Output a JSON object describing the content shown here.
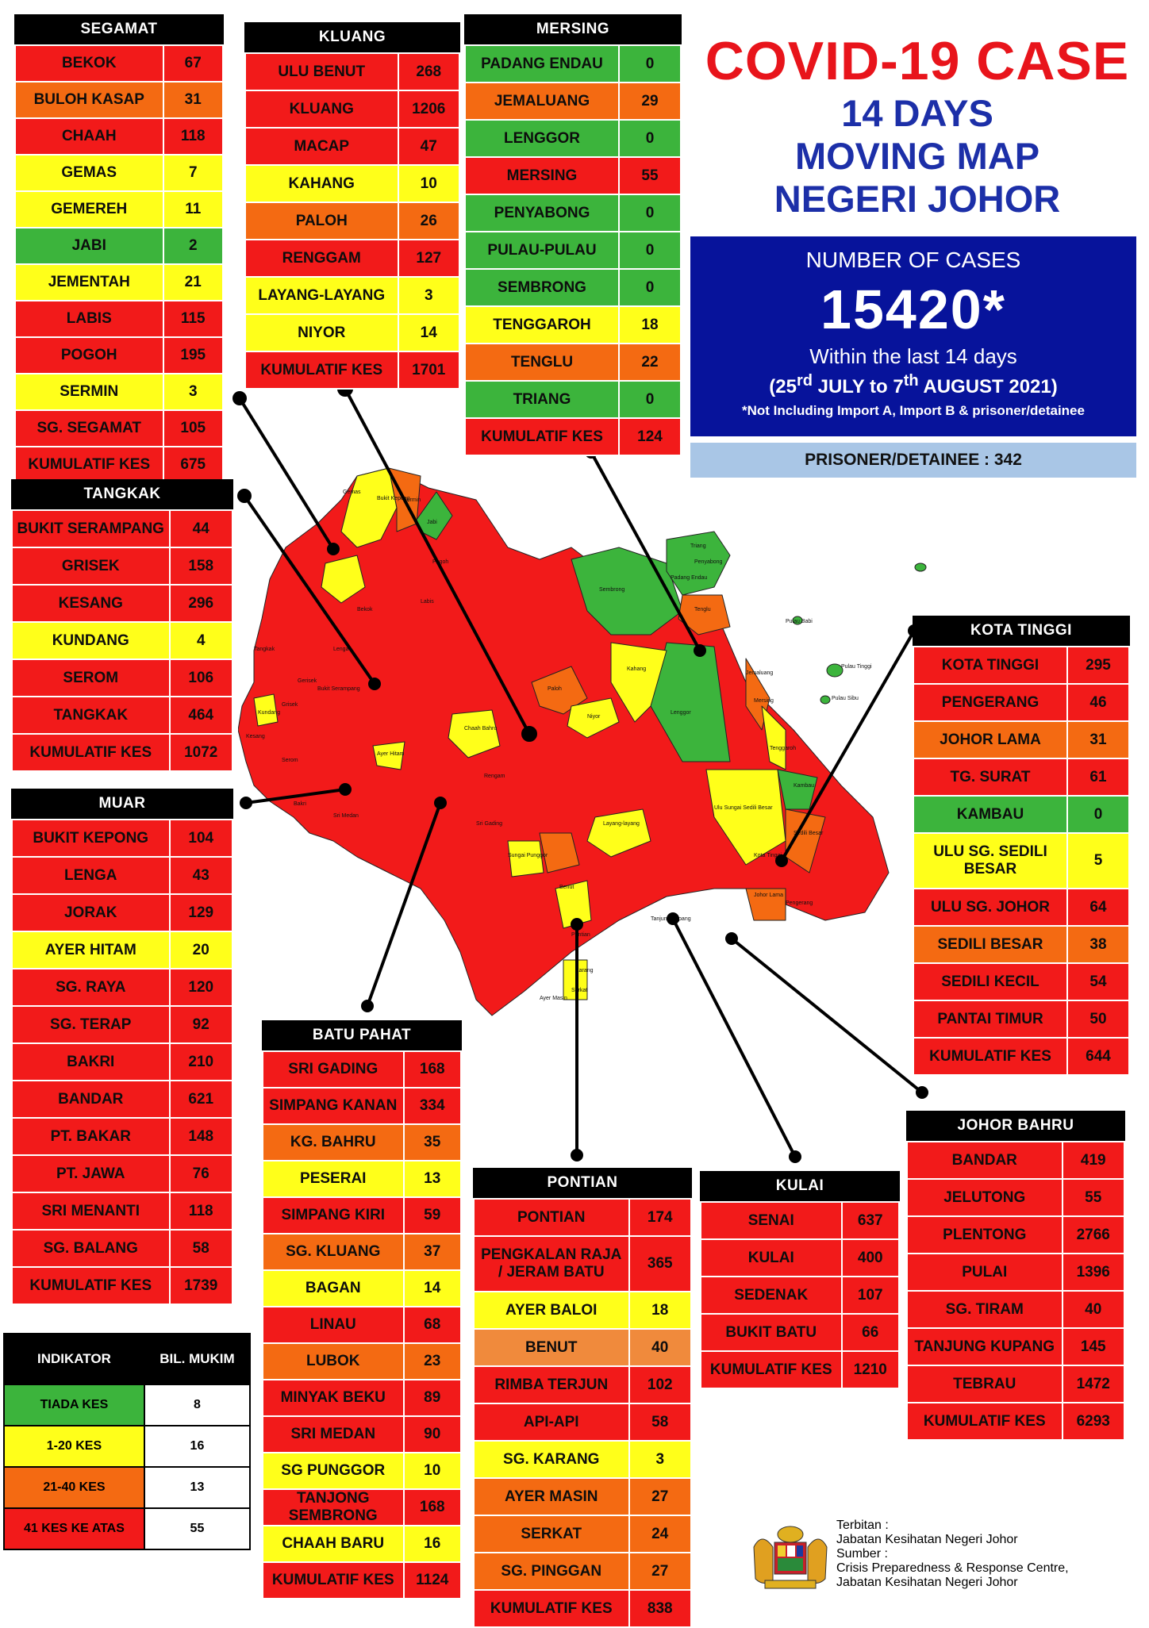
{
  "title": {
    "main": "COVID-19 CASE",
    "line2": "14 DAYS",
    "line3": "MOVING MAP",
    "line4": "NEGERI JOHOR"
  },
  "summary": {
    "label": "NUMBER OF CASES",
    "total": "15420*",
    "within": "Within the last 14 days",
    "period_start_day": "25",
    "period_start_suffix": "rd",
    "period_start_month": "JULY to ",
    "period_end_day": "7",
    "period_end_suffix": "th",
    "period_end_month": "AUGUST 2021)",
    "note": "*Not Including Import A, Import B & prisoner/detainee",
    "prisoner": "PRISONER/DETAINEE : 342"
  },
  "districts": {
    "segamat": {
      "name": "SEGAMAT",
      "rows": [
        {
          "name": "BEKOK",
          "value": "67",
          "color": "red"
        },
        {
          "name": "BULOH KASAP",
          "value": "31",
          "color": "orange"
        },
        {
          "name": "CHAAH",
          "value": "118",
          "color": "red"
        },
        {
          "name": "GEMAS",
          "value": "7",
          "color": "yellow"
        },
        {
          "name": "GEMEREH",
          "value": "11",
          "color": "yellow"
        },
        {
          "name": "JABI",
          "value": "2",
          "color": "green"
        },
        {
          "name": "JEMENTAH",
          "value": "21",
          "color": "yellow"
        },
        {
          "name": "LABIS",
          "value": "115",
          "color": "red"
        },
        {
          "name": "POGOH",
          "value": "195",
          "color": "red"
        },
        {
          "name": "SERMIN",
          "value": "3",
          "color": "yellow"
        },
        {
          "name": "SG. SEGAMAT",
          "value": "105",
          "color": "red"
        },
        {
          "name": "KUMULATIF KES",
          "value": "675",
          "color": "red"
        }
      ]
    },
    "kluang": {
      "name": "KLUANG",
      "rows": [
        {
          "name": "ULU BENUT",
          "value": "268",
          "color": "red"
        },
        {
          "name": "KLUANG",
          "value": "1206",
          "color": "red"
        },
        {
          "name": "MACAP",
          "value": "47",
          "color": "red"
        },
        {
          "name": "KAHANG",
          "value": "10",
          "color": "yellow"
        },
        {
          "name": "PALOH",
          "value": "26",
          "color": "orange"
        },
        {
          "name": "RENGGAM",
          "value": "127",
          "color": "red"
        },
        {
          "name": "LAYANG-LAYANG",
          "value": "3",
          "color": "yellow"
        },
        {
          "name": "NIYOR",
          "value": "14",
          "color": "yellow"
        },
        {
          "name": "KUMULATIF KES",
          "value": "1701",
          "color": "red"
        }
      ]
    },
    "mersing": {
      "name": "MERSING",
      "rows": [
        {
          "name": "PADANG ENDAU",
          "value": "0",
          "color": "green"
        },
        {
          "name": "JEMALUANG",
          "value": "29",
          "color": "orange"
        },
        {
          "name": "LENGGOR",
          "value": "0",
          "color": "green"
        },
        {
          "name": "MERSING",
          "value": "55",
          "color": "red"
        },
        {
          "name": "PENYABONG",
          "value": "0",
          "color": "green"
        },
        {
          "name": "PULAU-PULAU",
          "value": "0",
          "color": "green"
        },
        {
          "name": "SEMBRONG",
          "value": "0",
          "color": "green"
        },
        {
          "name": "TENGGAROH",
          "value": "18",
          "color": "yellow"
        },
        {
          "name": "TENGLU",
          "value": "22",
          "color": "orange"
        },
        {
          "name": "TRIANG",
          "value": "0",
          "color": "green"
        },
        {
          "name": "KUMULATIF KES",
          "value": "124",
          "color": "red"
        }
      ]
    },
    "tangkak": {
      "name": "TANGKAK",
      "rows": [
        {
          "name": "BUKIT SERAMPANG",
          "value": "44",
          "color": "red"
        },
        {
          "name": "GRISEK",
          "value": "158",
          "color": "red"
        },
        {
          "name": "KESANG",
          "value": "296",
          "color": "red"
        },
        {
          "name": "KUNDANG",
          "value": "4",
          "color": "yellow"
        },
        {
          "name": "SEROM",
          "value": "106",
          "color": "red"
        },
        {
          "name": "TANGKAK",
          "value": "464",
          "color": "red"
        },
        {
          "name": "KUMULATIF KES",
          "value": "1072",
          "color": "red"
        }
      ]
    },
    "muar": {
      "name": "MUAR",
      "rows": [
        {
          "name": "BUKIT KEPONG",
          "value": "104",
          "color": "red"
        },
        {
          "name": "LENGA",
          "value": "43",
          "color": "red"
        },
        {
          "name": "JORAK",
          "value": "129",
          "color": "red"
        },
        {
          "name": "AYER HITAM",
          "value": "20",
          "color": "yellow"
        },
        {
          "name": "SG. RAYA",
          "value": "120",
          "color": "red"
        },
        {
          "name": "SG. TERAP",
          "value": "92",
          "color": "red"
        },
        {
          "name": "BAKRI",
          "value": "210",
          "color": "red"
        },
        {
          "name": "BANDAR",
          "value": "621",
          "color": "red"
        },
        {
          "name": "PT. BAKAR",
          "value": "148",
          "color": "red"
        },
        {
          "name": "PT. JAWA",
          "value": "76",
          "color": "red"
        },
        {
          "name": "SRI MENANTI",
          "value": "118",
          "color": "red"
        },
        {
          "name": "SG. BALANG",
          "value": "58",
          "color": "red"
        },
        {
          "name": "KUMULATIF KES",
          "value": "1739",
          "color": "red"
        }
      ]
    },
    "kota_tinggi": {
      "name": "KOTA TINGGI",
      "rows": [
        {
          "name": "KOTA TINGGI",
          "value": "295",
          "color": "red"
        },
        {
          "name": "PENGERANG",
          "value": "46",
          "color": "red"
        },
        {
          "name": "JOHOR LAMA",
          "value": "31",
          "color": "orange"
        },
        {
          "name": "TG. SURAT",
          "value": "61",
          "color": "red"
        },
        {
          "name": "KAMBAU",
          "value": "0",
          "color": "green"
        },
        {
          "name": "ULU SG. SEDILI BESAR",
          "value": "5",
          "color": "yellow"
        },
        {
          "name": "ULU  SG. JOHOR",
          "value": "64",
          "color": "red"
        },
        {
          "name": "SEDILI BESAR",
          "value": "38",
          "color": "orange"
        },
        {
          "name": "SEDILI KECIL",
          "value": "54",
          "color": "red"
        },
        {
          "name": "PANTAI TIMUR",
          "value": "50",
          "color": "red"
        },
        {
          "name": "KUMULATIF KES",
          "value": "644",
          "color": "red"
        }
      ]
    },
    "batu_pahat": {
      "name": "BATU PAHAT",
      "rows": [
        {
          "name": "SRI GADING",
          "value": "168",
          "color": "red"
        },
        {
          "name": "SIMPANG KANAN",
          "value": "334",
          "color": "red"
        },
        {
          "name": "KG. BAHRU",
          "value": "35",
          "color": "orange"
        },
        {
          "name": "PESERAI",
          "value": "13",
          "color": "yellow"
        },
        {
          "name": "SIMPANG KIRI",
          "value": "59",
          "color": "red"
        },
        {
          "name": "SG. KLUANG",
          "value": "37",
          "color": "orange"
        },
        {
          "name": "BAGAN",
          "value": "14",
          "color": "yellow"
        },
        {
          "name": "LINAU",
          "value": "68",
          "color": "red"
        },
        {
          "name": "LUBOK",
          "value": "23",
          "color": "orange"
        },
        {
          "name": "MINYAK BEKU",
          "value": "89",
          "color": "red"
        },
        {
          "name": "SRI MEDAN",
          "value": "90",
          "color": "red"
        },
        {
          "name": "SG PUNGGOR",
          "value": "10",
          "color": "yellow"
        },
        {
          "name": "TANJONG SEMBRONG",
          "value": "168",
          "color": "red"
        },
        {
          "name": "CHAAH BARU",
          "value": "16",
          "color": "yellow"
        },
        {
          "name": "KUMULATIF KES",
          "value": "1124",
          "color": "red"
        }
      ]
    },
    "pontian": {
      "name": "PONTIAN",
      "rows": [
        {
          "name": "PONTIAN",
          "value": "174",
          "color": "red"
        },
        {
          "name": "PENGKALAN RAJA / JERAM BATU",
          "value": "365",
          "color": "red"
        },
        {
          "name": "AYER BALOI",
          "value": "18",
          "color": "yellow"
        },
        {
          "name": "BENUT",
          "value": "40",
          "color": "benut"
        },
        {
          "name": "RIMBA TERJUN",
          "value": "102",
          "color": "red"
        },
        {
          "name": "API-API",
          "value": "58",
          "color": "red"
        },
        {
          "name": "SG. KARANG",
          "value": "3",
          "color": "yellow"
        },
        {
          "name": "AYER MASIN",
          "value": "27",
          "color": "orange"
        },
        {
          "name": "SERKAT",
          "value": "24",
          "color": "orange"
        },
        {
          "name": "SG. PINGGAN",
          "value": "27",
          "color": "orange"
        },
        {
          "name": "KUMULATIF KES",
          "value": "838",
          "color": "red"
        }
      ]
    },
    "kulai": {
      "name": "KULAI",
      "rows": [
        {
          "name": "SENAI",
          "value": "637",
          "color": "red"
        },
        {
          "name": "KULAI",
          "value": "400",
          "color": "red"
        },
        {
          "name": "SEDENAK",
          "value": "107",
          "color": "red"
        },
        {
          "name": "BUKIT BATU",
          "value": "66",
          "color": "red"
        },
        {
          "name": "KUMULATIF KES",
          "value": "1210",
          "color": "red"
        }
      ]
    },
    "johor_bahru": {
      "name": "JOHOR BAHRU",
      "rows": [
        {
          "name": "BANDAR",
          "value": "419",
          "color": "red"
        },
        {
          "name": "JELUTONG",
          "value": "55",
          "color": "red"
        },
        {
          "name": "PLENTONG",
          "value": "2766",
          "color": "red"
        },
        {
          "name": "PULAI",
          "value": "1396",
          "color": "red"
        },
        {
          "name": "SG. TIRAM",
          "value": "40",
          "color": "red"
        },
        {
          "name": "TANJUNG KUPANG",
          "value": "145",
          "color": "red"
        },
        {
          "name": "TEBRAU",
          "value": "1472",
          "color": "red"
        },
        {
          "name": "KUMULATIF KES",
          "value": "6293",
          "color": "red"
        }
      ]
    }
  },
  "legend": {
    "header_indicator": "INDIKATOR",
    "header_count": "BIL. MUKIM",
    "rows": [
      {
        "label": "TIADA KES",
        "count": "8",
        "color": "green"
      },
      {
        "label": "1-20 KES",
        "count": "16",
        "color": "yellow"
      },
      {
        "label": "21-40 KES",
        "count": "13",
        "color": "orange"
      },
      {
        "label": "41 KES KE ATAS",
        "count": "55",
        "color": "red"
      }
    ]
  },
  "footer": {
    "publisher_label": "Terbitan :",
    "publisher": "Jabatan Kesihatan Negeri Johor",
    "source_label": "Sumber :",
    "source_line1": "Crisis Preparedness & Response Centre,",
    "source_line2": "Jabatan Kesihatan Negeri Johor"
  },
  "map_labels": [
    "Gemas",
    "Bukit Kepong",
    "Sermin",
    "Jabi",
    "Pogoh",
    "Labis",
    "Bekok",
    "Sembrong",
    "Paloh",
    "Kahang",
    "Niyor",
    "Chaah Bahru",
    "Ayer Hitam",
    "Lenggor",
    "Triang",
    "Penyabong",
    "Padang Endau",
    "Tenglu",
    "Jemaluang",
    "Mersing",
    "Tenggaroh",
    "Pulau Babi",
    "Pulau Tinggi",
    "Pulau Sibu",
    "Ulu Sungai Sedili Besar",
    "Kambau",
    "Sedili Besar",
    "Layang-layang",
    "Kota Tinggi",
    "Johor Lama",
    "Pengerang",
    "Pontian",
    "Ayer Masin",
    "Serkat",
    "Karang",
    "Benut",
    "Tangkak",
    "Grisek",
    "Kesang",
    "Kundang",
    "Serom",
    "Bakri",
    "Sri Medan",
    "Rengam",
    "Sri Gading",
    "Lenga",
    "Bukit Serampang",
    "Gerisek",
    "Sungai Punggor",
    "Tanjung Kupang"
  ],
  "colors": {
    "red": "#f21a1a",
    "orange": "#f46a12",
    "yellow": "#ffff1a",
    "green": "#3cb43c",
    "benut": "#f08a3c",
    "title_red": "#e8141b",
    "title_blue": "#1c2fa8",
    "cases_bg": "#07139b",
    "prisoner_bg": "#a9c6e6"
  },
  "icons": {
    "crest": "malaysia-coat-of-arms-icon"
  }
}
